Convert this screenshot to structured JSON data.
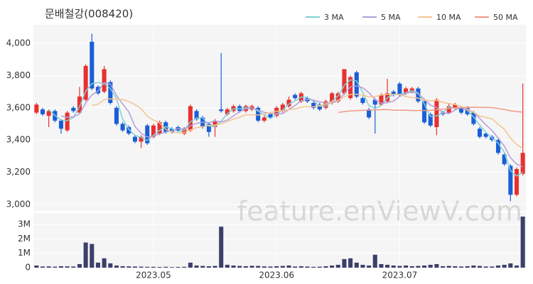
{
  "chart_data": {
    "type": "candlestick",
    "title": "문배철강(008420)",
    "watermark": "feature.enViewV.com",
    "categories": [
      null,
      null,
      null,
      null,
      null,
      null,
      null,
      null,
      null,
      null,
      null,
      null,
      null,
      null,
      null,
      null,
      null,
      null,
      null,
      "2023.05",
      null,
      null,
      null,
      null,
      null,
      null,
      null,
      null,
      null,
      null,
      null,
      null,
      null,
      null,
      null,
      null,
      null,
      null,
      null,
      "2023.06",
      null,
      null,
      null,
      null,
      null,
      null,
      null,
      null,
      null,
      null,
      null,
      null,
      null,
      null,
      null,
      null,
      null,
      null,
      null,
      "2023.07",
      null,
      null,
      null,
      null,
      null,
      null,
      null,
      null,
      null,
      null,
      null,
      null,
      null,
      null,
      null,
      null,
      null,
      null,
      null,
      null
    ],
    "open": [
      3570,
      3590,
      3550,
      3580,
      3520,
      3460,
      3600,
      3570,
      3650,
      4010,
      3730,
      3700,
      3760,
      3600,
      3500,
      3480,
      3420,
      3390,
      3490,
      3420,
      3440,
      3510,
      3470,
      3480,
      3440,
      3460,
      3580,
      3540,
      3500,
      3480,
      3590,
      3560,
      3580,
      3610,
      3580,
      3590,
      3600,
      3520,
      3560,
      3550,
      3580,
      3610,
      3680,
      3640,
      3660,
      3630,
      3620,
      3600,
      3630,
      3640,
      3690,
      3660,
      3820,
      3660,
      3590,
      3650,
      3620,
      3640,
      3700,
      3750,
      3690,
      3700,
      3720,
      3640,
      3560,
      3480,
      3570,
      3570,
      3600,
      3600,
      3600,
      3570,
      3470,
      3440,
      3420,
      3400,
      3310,
      3240,
      3060,
      3190
    ],
    "high": [
      3630,
      3600,
      3590,
      3590,
      3530,
      3580,
      3610,
      3730,
      3870,
      4060,
      3740,
      3860,
      3770,
      3610,
      3510,
      3490,
      3430,
      3430,
      3500,
      3500,
      3520,
      3520,
      3480,
      3490,
      3480,
      3620,
      3590,
      3550,
      3510,
      3530,
      3940,
      3600,
      3620,
      3620,
      3620,
      3620,
      3610,
      3550,
      3570,
      3610,
      3630,
      3670,
      3690,
      3700,
      3670,
      3640,
      3630,
      3650,
      3700,
      3700,
      3840,
      3800,
      3830,
      3670,
      3600,
      3660,
      3690,
      3780,
      3710,
      3760,
      3730,
      3730,
      3730,
      3650,
      3570,
      3660,
      3580,
      3630,
      3630,
      3610,
      3610,
      3580,
      3480,
      3450,
      3430,
      3410,
      3320,
      3250,
      3230,
      3750
    ],
    "low": [
      3560,
      3550,
      3480,
      3510,
      3440,
      3450,
      3570,
      3560,
      3640,
      3710,
      3680,
      3690,
      3620,
      3490,
      3450,
      3430,
      3380,
      3350,
      3370,
      3410,
      3430,
      3440,
      3440,
      3450,
      3430,
      3450,
      3520,
      3470,
      3420,
      3420,
      3570,
      3550,
      3570,
      3570,
      3570,
      3580,
      3510,
      3510,
      3530,
      3540,
      3570,
      3600,
      3650,
      3630,
      3630,
      3590,
      3580,
      3590,
      3620,
      3630,
      3680,
      3650,
      3660,
      3620,
      3530,
      3440,
      3610,
      3630,
      3670,
      3670,
      3680,
      3690,
      3630,
      3500,
      3480,
      3430,
      3550,
      3560,
      3590,
      3560,
      3550,
      3490,
      3410,
      3410,
      3390,
      3310,
      3240,
      3020,
      3050,
      3180
    ],
    "close": [
      3620,
      3560,
      3580,
      3520,
      3470,
      3570,
      3580,
      3670,
      3860,
      3720,
      3690,
      3840,
      3630,
      3500,
      3460,
      3440,
      3390,
      3420,
      3380,
      3490,
      3510,
      3450,
      3450,
      3460,
      3470,
      3610,
      3530,
      3480,
      3450,
      3520,
      3580,
      3590,
      3610,
      3580,
      3610,
      3610,
      3520,
      3540,
      3540,
      3600,
      3620,
      3650,
      3660,
      3690,
      3640,
      3600,
      3590,
      3640,
      3690,
      3690,
      3840,
      3790,
      3670,
      3630,
      3540,
      3620,
      3680,
      3690,
      3680,
      3680,
      3720,
      3720,
      3640,
      3510,
      3490,
      3650,
      3560,
      3610,
      3620,
      3570,
      3560,
      3500,
      3420,
      3420,
      3400,
      3320,
      3250,
      3060,
      3220,
      3320
    ],
    "up_color": "#e8312f",
    "down_color": "#1a5ed8",
    "ylim": [
      2960,
      4115
    ],
    "yticks": [
      {
        "value": 3000,
        "label": "3,000"
      },
      {
        "value": 3200,
        "label": "3,200"
      },
      {
        "value": 3400,
        "label": "3,400"
      },
      {
        "value": 3600,
        "label": "3,600"
      },
      {
        "value": 3800,
        "label": "3,800"
      },
      {
        "value": 4000,
        "label": "4,000"
      }
    ],
    "grid": true,
    "moving_averages": [
      {
        "name": "3 MA",
        "color": "#7fd0d6"
      },
      {
        "name": "5 MA",
        "color": "#b39ddb"
      },
      {
        "name": "10 MA",
        "color": "#f3c48f"
      },
      {
        "name": "50 MA",
        "color": "#f29a85"
      }
    ],
    "volume": {
      "color": "#3d3f6b",
      "ylim": [
        0,
        3800000
      ],
      "yticks": [
        {
          "value": 0,
          "label": "0"
        },
        {
          "value": 1000000,
          "label": "1M"
        },
        {
          "value": 2000000,
          "label": "2M"
        },
        {
          "value": 3000000,
          "label": "3M"
        }
      ],
      "values": [
        150000,
        80000,
        90000,
        70000,
        100000,
        90000,
        80000,
        250000,
        1750000,
        1650000,
        350000,
        650000,
        300000,
        150000,
        100000,
        90000,
        80000,
        70000,
        60000,
        60000,
        50000,
        60000,
        40000,
        50000,
        60000,
        350000,
        150000,
        120000,
        100000,
        120000,
        2850000,
        200000,
        150000,
        120000,
        100000,
        130000,
        120000,
        90000,
        80000,
        100000,
        120000,
        150000,
        80000,
        100000,
        80000,
        60000,
        70000,
        100000,
        150000,
        200000,
        600000,
        650000,
        350000,
        200000,
        150000,
        900000,
        250000,
        200000,
        150000,
        120000,
        150000,
        100000,
        120000,
        150000,
        200000,
        250000,
        100000,
        120000,
        100000,
        80000,
        100000,
        150000,
        120000,
        80000,
        80000,
        150000,
        200000,
        300000,
        150000,
        3550000
      ]
    }
  }
}
